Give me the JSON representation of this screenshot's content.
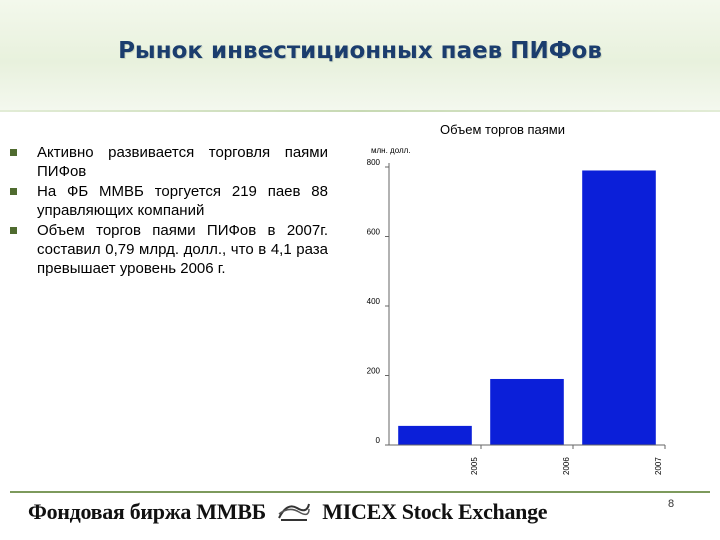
{
  "slide": {
    "title": "Рынок инвестиционных паев ПИФов",
    "bullets": [
      "Активно развивается торговля паями ПИФов",
      "На ФБ ММВБ торгуется 219 паев 88 управляющих компаний",
      "Объем торгов паями ПИФов в 2007г. составил 0,79 млрд. долл., что в 4,1 раза превышает уровень 2006 г."
    ]
  },
  "chart_data": {
    "type": "bar",
    "title": "Объем торгов паями",
    "ylabel": "млн. долл.",
    "categories": [
      "2005",
      "2006",
      "2007"
    ],
    "values": [
      55,
      190,
      790
    ],
    "y_ticks": [
      "0",
      "200",
      "400",
      "600",
      "800"
    ],
    "ylim": [
      0,
      800
    ],
    "grid": false,
    "bar_color": "#0b1fd9"
  },
  "footer": {
    "logo_left": "Фондовая биржа ММВБ",
    "logo_right": "MICEX Stock Exchange",
    "page_number": "8"
  }
}
